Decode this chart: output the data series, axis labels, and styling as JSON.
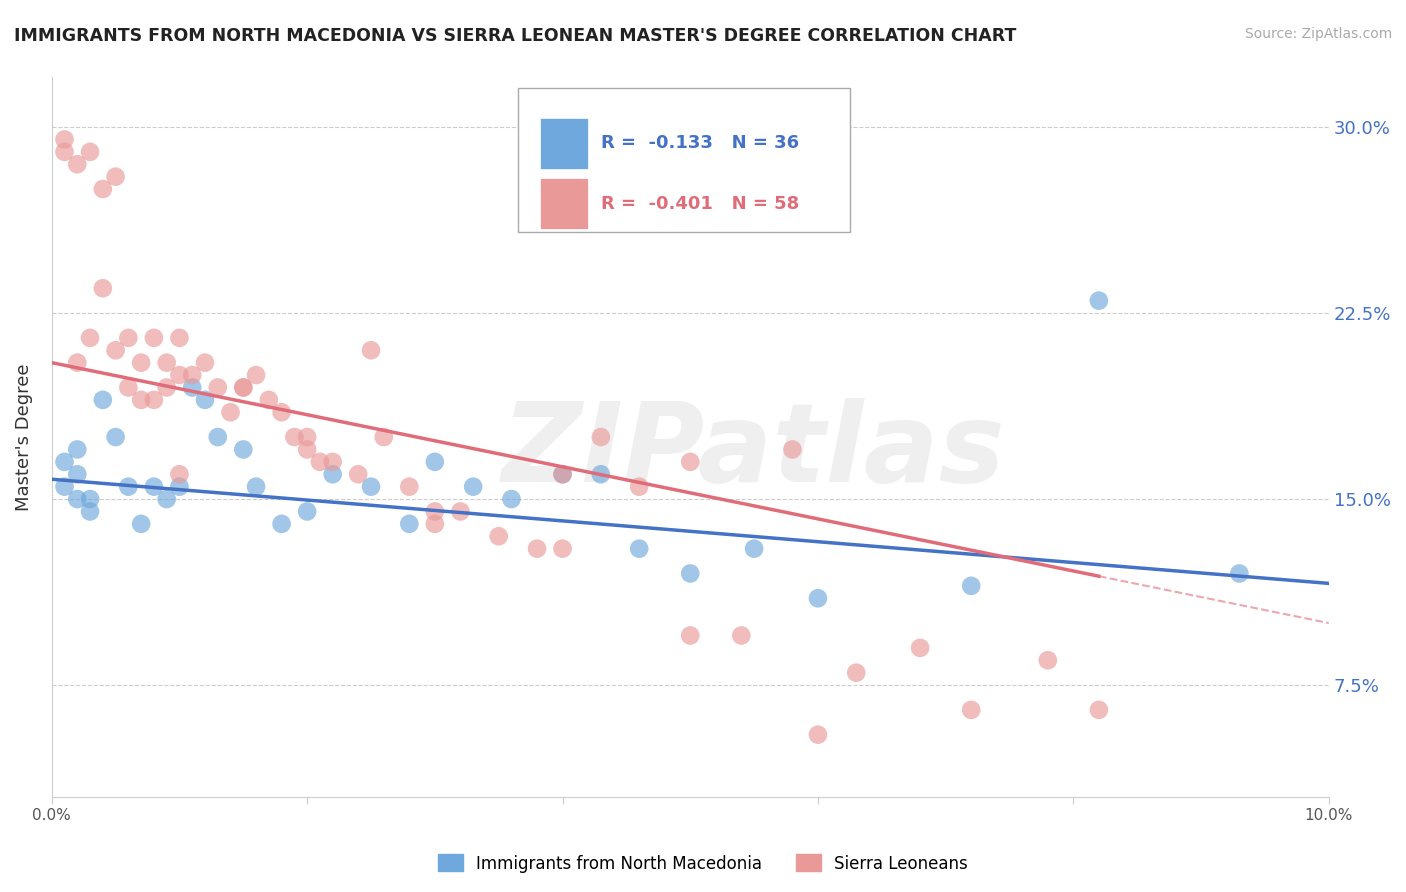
{
  "title": "IMMIGRANTS FROM NORTH MACEDONIA VS SIERRA LEONEAN MASTER'S DEGREE CORRELATION CHART",
  "source": "Source: ZipAtlas.com",
  "ylabel": "Master's Degree",
  "y_ticks": [
    0.075,
    0.15,
    0.225,
    0.3
  ],
  "y_tick_labels": [
    "7.5%",
    "15.0%",
    "22.5%",
    "30.0%"
  ],
  "x_min": 0.0,
  "x_max": 0.1,
  "y_min": 0.03,
  "y_max": 0.32,
  "legend_r1": "R = -0.133",
  "legend_n1": "N = 36",
  "legend_r2": "R = -0.401",
  "legend_n2": "N = 58",
  "label1": "Immigrants from North Macedonia",
  "label2": "Sierra Leoneans",
  "color1": "#6fa8dc",
  "color2": "#ea9999",
  "trend1_color": "#4472c4",
  "trend2_color": "#e06c7a",
  "watermark": "ZIPatlas",
  "blue_points_x": [
    0.001,
    0.001,
    0.002,
    0.002,
    0.002,
    0.003,
    0.003,
    0.004,
    0.005,
    0.006,
    0.007,
    0.008,
    0.009,
    0.01,
    0.011,
    0.012,
    0.013,
    0.015,
    0.016,
    0.018,
    0.02,
    0.022,
    0.025,
    0.028,
    0.03,
    0.033,
    0.036,
    0.04,
    0.043,
    0.046,
    0.05,
    0.055,
    0.06,
    0.072,
    0.082,
    0.093
  ],
  "blue_points_y": [
    0.155,
    0.165,
    0.15,
    0.16,
    0.17,
    0.145,
    0.15,
    0.19,
    0.175,
    0.155,
    0.14,
    0.155,
    0.15,
    0.155,
    0.195,
    0.19,
    0.175,
    0.17,
    0.155,
    0.14,
    0.145,
    0.16,
    0.155,
    0.14,
    0.165,
    0.155,
    0.15,
    0.16,
    0.16,
    0.13,
    0.12,
    0.13,
    0.11,
    0.115,
    0.23,
    0.12
  ],
  "pink_points_x": [
    0.001,
    0.001,
    0.002,
    0.002,
    0.003,
    0.003,
    0.004,
    0.004,
    0.005,
    0.005,
    0.006,
    0.006,
    0.007,
    0.007,
    0.008,
    0.008,
    0.009,
    0.009,
    0.01,
    0.01,
    0.011,
    0.012,
    0.013,
    0.014,
    0.015,
    0.016,
    0.017,
    0.018,
    0.019,
    0.02,
    0.021,
    0.022,
    0.024,
    0.026,
    0.028,
    0.03,
    0.032,
    0.035,
    0.038,
    0.04,
    0.043,
    0.046,
    0.05,
    0.054,
    0.058,
    0.063,
    0.068,
    0.072,
    0.078,
    0.082,
    0.025,
    0.015,
    0.01,
    0.02,
    0.03,
    0.04,
    0.05,
    0.06
  ],
  "pink_points_y": [
    0.29,
    0.295,
    0.285,
    0.205,
    0.29,
    0.215,
    0.275,
    0.235,
    0.28,
    0.21,
    0.195,
    0.215,
    0.19,
    0.205,
    0.215,
    0.19,
    0.205,
    0.195,
    0.2,
    0.215,
    0.2,
    0.205,
    0.195,
    0.185,
    0.195,
    0.2,
    0.19,
    0.185,
    0.175,
    0.175,
    0.165,
    0.165,
    0.16,
    0.175,
    0.155,
    0.145,
    0.145,
    0.135,
    0.13,
    0.16,
    0.175,
    0.155,
    0.165,
    0.095,
    0.17,
    0.08,
    0.09,
    0.065,
    0.085,
    0.065,
    0.21,
    0.195,
    0.16,
    0.17,
    0.14,
    0.13,
    0.095,
    0.055
  ]
}
